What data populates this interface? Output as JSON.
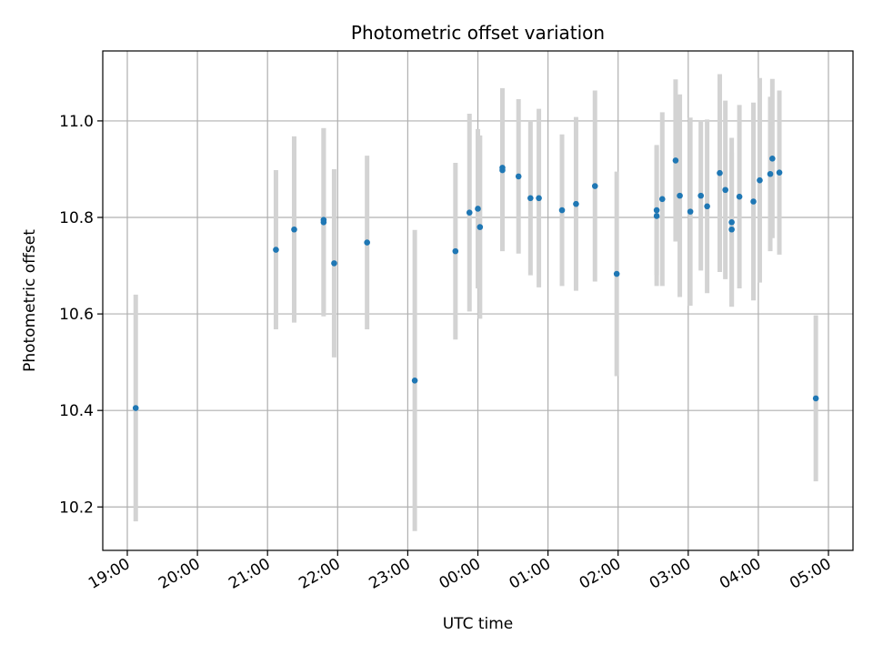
{
  "chart_data": {
    "type": "scatter",
    "title": "Photometric offset variation",
    "xlabel": "UTC time",
    "ylabel": "Photometric offset",
    "x_tick_labels": [
      "19:00",
      "20:00",
      "21:00",
      "22:00",
      "23:00",
      "00:00",
      "01:00",
      "02:00",
      "03:00",
      "04:00",
      "05:00"
    ],
    "x_ticks_hours": [
      0,
      1,
      2,
      3,
      4,
      5,
      6,
      7,
      8,
      9,
      10
    ],
    "y_ticks": [
      10.2,
      10.4,
      10.6,
      10.8,
      11.0
    ],
    "y_tick_labels": [
      "10.2",
      "10.4",
      "10.6",
      "10.8",
      "11.0"
    ],
    "xlim_hours": [
      -0.35,
      10.35
    ],
    "ylim": [
      10.11,
      11.145
    ],
    "grid": true,
    "colors": {
      "points": "#1f77b4",
      "errorbars": "#d3d3d3",
      "grid": "#b0b0b0"
    },
    "x_axis_note": "x values are hours since 19:00 UTC",
    "points": [
      {
        "x": 0.12,
        "y": 10.405,
        "err": 0.235
      },
      {
        "x": 2.12,
        "y": 10.733,
        "err": 0.165
      },
      {
        "x": 2.38,
        "y": 10.775,
        "err": 0.193
      },
      {
        "x": 2.8,
        "y": 10.79,
        "err": 0.195
      },
      {
        "x": 2.8,
        "y": 10.795,
        "err": 0.19
      },
      {
        "x": 2.95,
        "y": 10.705,
        "err": 0.195
      },
      {
        "x": 3.42,
        "y": 10.748,
        "err": 0.18
      },
      {
        "x": 4.1,
        "y": 10.462,
        "err": 0.312
      },
      {
        "x": 4.68,
        "y": 10.73,
        "err": 0.183
      },
      {
        "x": 4.88,
        "y": 10.81,
        "err": 0.205
      },
      {
        "x": 5.0,
        "y": 10.818,
        "err": 0.165
      },
      {
        "x": 5.03,
        "y": 10.78,
        "err": 0.19
      },
      {
        "x": 5.35,
        "y": 10.898,
        "err": 0.168
      },
      {
        "x": 5.35,
        "y": 10.903,
        "err": 0.165
      },
      {
        "x": 5.58,
        "y": 10.885,
        "err": 0.16
      },
      {
        "x": 5.75,
        "y": 10.84,
        "err": 0.16
      },
      {
        "x": 5.87,
        "y": 10.84,
        "err": 0.185
      },
      {
        "x": 6.2,
        "y": 10.815,
        "err": 0.157
      },
      {
        "x": 6.4,
        "y": 10.828,
        "err": 0.18
      },
      {
        "x": 6.67,
        "y": 10.865,
        "err": 0.198
      },
      {
        "x": 6.98,
        "y": 10.683,
        "err": 0.212
      },
      {
        "x": 7.55,
        "y": 10.803,
        "err": 0.145
      },
      {
        "x": 7.55,
        "y": 10.815,
        "err": 0.135
      },
      {
        "x": 7.63,
        "y": 10.838,
        "err": 0.18
      },
      {
        "x": 7.82,
        "y": 10.918,
        "err": 0.168
      },
      {
        "x": 7.88,
        "y": 10.845,
        "err": 0.21
      },
      {
        "x": 8.03,
        "y": 10.812,
        "err": 0.195
      },
      {
        "x": 8.18,
        "y": 10.845,
        "err": 0.155
      },
      {
        "x": 8.27,
        "y": 10.823,
        "err": 0.18
      },
      {
        "x": 8.45,
        "y": 10.892,
        "err": 0.205
      },
      {
        "x": 8.53,
        "y": 10.857,
        "err": 0.185
      },
      {
        "x": 8.62,
        "y": 10.775,
        "err": 0.16
      },
      {
        "x": 8.62,
        "y": 10.79,
        "err": 0.175
      },
      {
        "x": 8.73,
        "y": 10.843,
        "err": 0.19
      },
      {
        "x": 8.93,
        "y": 10.833,
        "err": 0.205
      },
      {
        "x": 9.02,
        "y": 10.877,
        "err": 0.212
      },
      {
        "x": 9.17,
        "y": 10.89,
        "err": 0.16
      },
      {
        "x": 9.2,
        "y": 10.922,
        "err": 0.165
      },
      {
        "x": 9.3,
        "y": 10.893,
        "err": 0.17
      },
      {
        "x": 9.82,
        "y": 10.425,
        "err": 0.172
      }
    ]
  }
}
